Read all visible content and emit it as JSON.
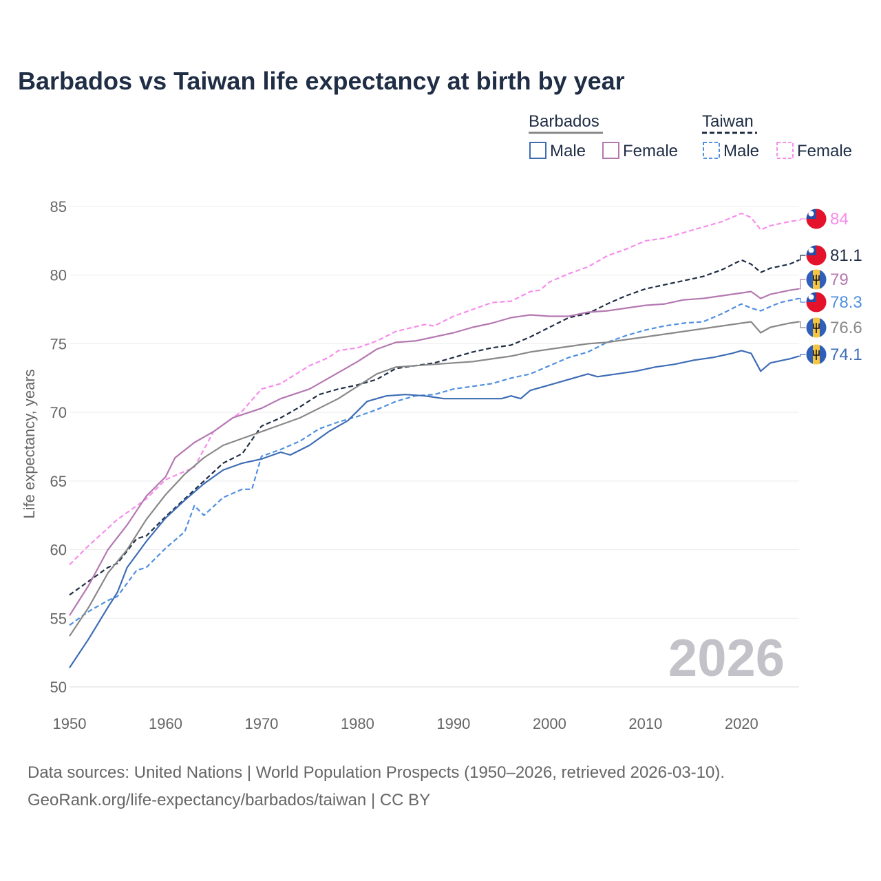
{
  "title": "Barbados vs Taiwan life expectancy at birth by year",
  "year_watermark": "2026",
  "source_line1": "Data sources: United Nations | World Population Prospects (1950–2026, retrieved 2026-03-10).",
  "source_line2": "GeoRank.org/life-expectancy/barbados/taiwan | CC BY",
  "legend": {
    "groups": [
      {
        "label": "Barbados",
        "line_color": "#888888",
        "dashed": false,
        "items": [
          {
            "label": "Male",
            "color": "#3d6cb5"
          },
          {
            "label": "Female",
            "color": "#b478b0"
          }
        ]
      },
      {
        "label": "Taiwan",
        "line_color": "#1f2d45",
        "dashed": true,
        "items": [
          {
            "label": "Male",
            "color": "#4f8fe0"
          },
          {
            "label": "Female",
            "color": "#f78cec"
          }
        ]
      }
    ]
  },
  "chart_data": {
    "type": "line",
    "title": "Barbados vs Taiwan life expectancy at birth by year",
    "xlabel": "",
    "ylabel": "Life expectancy, years",
    "xlim": [
      1950,
      2026
    ],
    "ylim": [
      50,
      86
    ],
    "x_ticks": [
      1950,
      1960,
      1970,
      1980,
      1990,
      2000,
      2010,
      2020
    ],
    "y_ticks": [
      50,
      55,
      60,
      65,
      70,
      75,
      80,
      85
    ],
    "grid": true,
    "legend_position": "top-right",
    "series": [
      {
        "name": "Taiwan Female",
        "country": "Taiwan",
        "flag": "taiwan-flag",
        "color": "#f78cec",
        "dashed": true,
        "end_label": "84",
        "points": [
          [
            1950,
            58.9
          ],
          [
            1952,
            60.3
          ],
          [
            1955,
            62.2
          ],
          [
            1958,
            63.7
          ],
          [
            1960,
            65.1
          ],
          [
            1963,
            66.0
          ],
          [
            1965,
            68.6
          ],
          [
            1968,
            70.1
          ],
          [
            1970,
            71.7
          ],
          [
            1972,
            72.1
          ],
          [
            1975,
            73.4
          ],
          [
            1977,
            74.0
          ],
          [
            1978,
            74.5
          ],
          [
            1980,
            74.7
          ],
          [
            1982,
            75.2
          ],
          [
            1984,
            75.9
          ],
          [
            1987,
            76.4
          ],
          [
            1988,
            76.3
          ],
          [
            1990,
            77.0
          ],
          [
            1992,
            77.5
          ],
          [
            1994,
            78.0
          ],
          [
            1996,
            78.1
          ],
          [
            1998,
            78.8
          ],
          [
            1999,
            78.9
          ],
          [
            2000,
            79.5
          ],
          [
            2002,
            80.1
          ],
          [
            2004,
            80.6
          ],
          [
            2006,
            81.4
          ],
          [
            2008,
            81.9
          ],
          [
            2010,
            82.5
          ],
          [
            2012,
            82.7
          ],
          [
            2014,
            83.1
          ],
          [
            2016,
            83.5
          ],
          [
            2018,
            83.9
          ],
          [
            2020,
            84.5
          ],
          [
            2021,
            84.2
          ],
          [
            2022,
            83.3
          ],
          [
            2023,
            83.6
          ],
          [
            2025,
            83.9
          ],
          [
            2026,
            84.0
          ]
        ]
      },
      {
        "name": "Taiwan Total",
        "country": "Taiwan",
        "flag": "taiwan-flag",
        "color": "#1f2d45",
        "dashed": true,
        "end_label": "81.1",
        "points": [
          [
            1950,
            56.7
          ],
          [
            1952,
            57.7
          ],
          [
            1954,
            58.7
          ],
          [
            1955,
            59.0
          ],
          [
            1957,
            60.8
          ],
          [
            1958,
            61.0
          ],
          [
            1960,
            62.4
          ],
          [
            1962,
            63.7
          ],
          [
            1964,
            65.0
          ],
          [
            1966,
            66.3
          ],
          [
            1968,
            67.0
          ],
          [
            1970,
            69.0
          ],
          [
            1972,
            69.6
          ],
          [
            1974,
            70.4
          ],
          [
            1976,
            71.3
          ],
          [
            1978,
            71.7
          ],
          [
            1980,
            72.0
          ],
          [
            1982,
            72.4
          ],
          [
            1984,
            73.2
          ],
          [
            1986,
            73.4
          ],
          [
            1988,
            73.6
          ],
          [
            1990,
            74.0
          ],
          [
            1992,
            74.4
          ],
          [
            1994,
            74.7
          ],
          [
            1996,
            74.9
          ],
          [
            1998,
            75.5
          ],
          [
            2000,
            76.2
          ],
          [
            2002,
            76.9
          ],
          [
            2004,
            77.2
          ],
          [
            2006,
            77.9
          ],
          [
            2008,
            78.5
          ],
          [
            2010,
            79.0
          ],
          [
            2012,
            79.3
          ],
          [
            2014,
            79.6
          ],
          [
            2016,
            79.9
          ],
          [
            2018,
            80.4
          ],
          [
            2020,
            81.1
          ],
          [
            2021,
            80.8
          ],
          [
            2022,
            80.2
          ],
          [
            2023,
            80.5
          ],
          [
            2025,
            80.8
          ],
          [
            2026,
            81.1
          ]
        ]
      },
      {
        "name": "Barbados Female",
        "country": "Barbados",
        "flag": "barbados-flag",
        "color": "#b478b0",
        "dashed": false,
        "end_label": "79",
        "points": [
          [
            1950,
            55.2
          ],
          [
            1952,
            57.4
          ],
          [
            1954,
            60.0
          ],
          [
            1956,
            61.8
          ],
          [
            1958,
            63.9
          ],
          [
            1960,
            65.3
          ],
          [
            1961,
            66.7
          ],
          [
            1963,
            67.8
          ],
          [
            1965,
            68.6
          ],
          [
            1967,
            69.6
          ],
          [
            1970,
            70.3
          ],
          [
            1972,
            71.0
          ],
          [
            1975,
            71.7
          ],
          [
            1977,
            72.5
          ],
          [
            1980,
            73.7
          ],
          [
            1982,
            74.6
          ],
          [
            1984,
            75.1
          ],
          [
            1986,
            75.2
          ],
          [
            1988,
            75.5
          ],
          [
            1990,
            75.8
          ],
          [
            1992,
            76.2
          ],
          [
            1994,
            76.5
          ],
          [
            1996,
            76.9
          ],
          [
            1998,
            77.1
          ],
          [
            2000,
            77.0
          ],
          [
            2002,
            77.0
          ],
          [
            2004,
            77.3
          ],
          [
            2006,
            77.4
          ],
          [
            2008,
            77.6
          ],
          [
            2010,
            77.8
          ],
          [
            2012,
            77.9
          ],
          [
            2014,
            78.2
          ],
          [
            2016,
            78.3
          ],
          [
            2018,
            78.5
          ],
          [
            2020,
            78.7
          ],
          [
            2021,
            78.8
          ],
          [
            2022,
            78.3
          ],
          [
            2023,
            78.6
          ],
          [
            2025,
            78.9
          ],
          [
            2026,
            79.0
          ]
        ]
      },
      {
        "name": "Taiwan Male",
        "country": "Taiwan",
        "flag": "taiwan-flag",
        "color": "#4f8fe0",
        "dashed": true,
        "end_label": "78.3",
        "points": [
          [
            1950,
            54.5
          ],
          [
            1952,
            55.5
          ],
          [
            1954,
            56.3
          ],
          [
            1955,
            56.6
          ],
          [
            1957,
            58.5
          ],
          [
            1958,
            58.7
          ],
          [
            1960,
            60.1
          ],
          [
            1962,
            61.3
          ],
          [
            1963,
            63.2
          ],
          [
            1964,
            62.5
          ],
          [
            1966,
            63.8
          ],
          [
            1968,
            64.4
          ],
          [
            1969,
            64.4
          ],
          [
            1970,
            66.8
          ],
          [
            1972,
            67.3
          ],
          [
            1974,
            67.9
          ],
          [
            1976,
            68.8
          ],
          [
            1978,
            69.3
          ],
          [
            1980,
            69.7
          ],
          [
            1982,
            70.2
          ],
          [
            1984,
            70.8
          ],
          [
            1986,
            71.2
          ],
          [
            1988,
            71.3
          ],
          [
            1990,
            71.7
          ],
          [
            1992,
            71.9
          ],
          [
            1994,
            72.1
          ],
          [
            1996,
            72.5
          ],
          [
            1998,
            72.8
          ],
          [
            2000,
            73.4
          ],
          [
            2002,
            74.0
          ],
          [
            2004,
            74.4
          ],
          [
            2006,
            75.1
          ],
          [
            2008,
            75.6
          ],
          [
            2010,
            76.0
          ],
          [
            2012,
            76.3
          ],
          [
            2014,
            76.5
          ],
          [
            2016,
            76.6
          ],
          [
            2018,
            77.2
          ],
          [
            2020,
            77.9
          ],
          [
            2021,
            77.6
          ],
          [
            2022,
            77.4
          ],
          [
            2024,
            78.0
          ],
          [
            2026,
            78.3
          ]
        ]
      },
      {
        "name": "Barbados Total",
        "country": "Barbados",
        "flag": "barbados-flag",
        "color": "#888888",
        "dashed": false,
        "end_label": "76.6",
        "points": [
          [
            1950,
            53.7
          ],
          [
            1952,
            55.8
          ],
          [
            1954,
            58.3
          ],
          [
            1956,
            60.0
          ],
          [
            1958,
            62.2
          ],
          [
            1960,
            64.0
          ],
          [
            1962,
            65.5
          ],
          [
            1964,
            66.7
          ],
          [
            1966,
            67.6
          ],
          [
            1968,
            68.1
          ],
          [
            1970,
            68.6
          ],
          [
            1972,
            69.1
          ],
          [
            1974,
            69.6
          ],
          [
            1976,
            70.3
          ],
          [
            1978,
            71.0
          ],
          [
            1980,
            71.9
          ],
          [
            1982,
            72.8
          ],
          [
            1984,
            73.3
          ],
          [
            1986,
            73.4
          ],
          [
            1988,
            73.5
          ],
          [
            1990,
            73.6
          ],
          [
            1992,
            73.7
          ],
          [
            1994,
            73.9
          ],
          [
            1996,
            74.1
          ],
          [
            1998,
            74.4
          ],
          [
            2000,
            74.6
          ],
          [
            2002,
            74.8
          ],
          [
            2004,
            75.0
          ],
          [
            2006,
            75.1
          ],
          [
            2008,
            75.3
          ],
          [
            2010,
            75.5
          ],
          [
            2012,
            75.7
          ],
          [
            2014,
            75.9
          ],
          [
            2016,
            76.1
          ],
          [
            2018,
            76.3
          ],
          [
            2020,
            76.5
          ],
          [
            2021,
            76.6
          ],
          [
            2022,
            75.8
          ],
          [
            2023,
            76.2
          ],
          [
            2025,
            76.5
          ],
          [
            2026,
            76.6
          ]
        ]
      },
      {
        "name": "Barbados Male",
        "country": "Barbados",
        "flag": "barbados-flag",
        "color": "#3d6cb5",
        "dashed": false,
        "end_label": "74.1",
        "points": [
          [
            1950,
            51.4
          ],
          [
            1952,
            53.5
          ],
          [
            1954,
            55.8
          ],
          [
            1955,
            56.9
          ],
          [
            1956,
            58.7
          ],
          [
            1958,
            60.6
          ],
          [
            1960,
            62.3
          ],
          [
            1962,
            63.6
          ],
          [
            1964,
            64.8
          ],
          [
            1966,
            65.8
          ],
          [
            1968,
            66.3
          ],
          [
            1970,
            66.6
          ],
          [
            1972,
            67.1
          ],
          [
            1973,
            66.9
          ],
          [
            1975,
            67.6
          ],
          [
            1977,
            68.6
          ],
          [
            1979,
            69.4
          ],
          [
            1981,
            70.8
          ],
          [
            1983,
            71.2
          ],
          [
            1985,
            71.3
          ],
          [
            1987,
            71.2
          ],
          [
            1989,
            71.0
          ],
          [
            1991,
            71.0
          ],
          [
            1993,
            71.0
          ],
          [
            1995,
            71.0
          ],
          [
            1996,
            71.2
          ],
          [
            1997,
            71.0
          ],
          [
            1998,
            71.6
          ],
          [
            2000,
            72.0
          ],
          [
            2002,
            72.4
          ],
          [
            2004,
            72.8
          ],
          [
            2005,
            72.6
          ],
          [
            2007,
            72.8
          ],
          [
            2009,
            73.0
          ],
          [
            2011,
            73.3
          ],
          [
            2013,
            73.5
          ],
          [
            2015,
            73.8
          ],
          [
            2017,
            74.0
          ],
          [
            2019,
            74.3
          ],
          [
            2020,
            74.5
          ],
          [
            2021,
            74.3
          ],
          [
            2022,
            73.0
          ],
          [
            2023,
            73.6
          ],
          [
            2025,
            73.9
          ],
          [
            2026,
            74.1
          ]
        ]
      }
    ]
  }
}
